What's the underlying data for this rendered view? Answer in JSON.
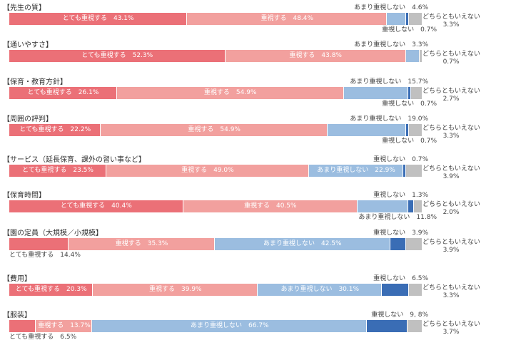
{
  "chart_data": {
    "type": "bar",
    "orientation": "horizontal-stacked-100",
    "series_names": [
      "とても重視する",
      "重視する",
      "あまり重視しない",
      "重視しない",
      "どちらともいえない"
    ],
    "colors": [
      "#eb7077",
      "#f2a09e",
      "#9bbde0",
      "#3a6db5",
      "#c0c0c0"
    ],
    "rows": [
      {
        "title": "【先生の質】",
        "values": [
          43.1,
          48.4,
          4.6,
          0.7,
          3.3
        ],
        "labels": [
          "とても重視する　43.1%",
          "重視する　48.4%",
          "あまり重視しない　4.6%",
          "重視しない　0.7%",
          "3.3%"
        ],
        "place": [
          "in",
          "in",
          "above",
          "below",
          "right"
        ]
      },
      {
        "title": "【通いやすさ】",
        "values": [
          52.3,
          43.8,
          3.3,
          0,
          0.7
        ],
        "labels": [
          "とても重視する　52.3%",
          "重視する　43.8%",
          "あまり重視しない　3.3%",
          "",
          "0.7%"
        ],
        "place": [
          "in",
          "in",
          "above",
          "none",
          "right"
        ]
      },
      {
        "title": "【保育・教育方針】",
        "values": [
          26.1,
          54.9,
          15.7,
          0.7,
          2.7
        ],
        "labels": [
          "とても重視する　26.1%",
          "重視する　54.9%",
          "あまり重視しない　15.7%",
          "重視しない　0.7%",
          "2.7%"
        ],
        "place": [
          "in",
          "in",
          "above",
          "below",
          "right"
        ]
      },
      {
        "title": "【周囲の評判】",
        "values": [
          22.2,
          54.9,
          19.0,
          0.7,
          3.3
        ],
        "labels": [
          "とても重視する　22.2%",
          "重視する　54.9%",
          "あまり重視しない　19.0%",
          "重視しない　0.7%",
          "3.3%"
        ],
        "place": [
          "in",
          "in",
          "above",
          "below",
          "right"
        ]
      },
      {
        "title": "【サービス（延長保育、課外の習い事など】",
        "values": [
          23.5,
          49.0,
          22.9,
          0.7,
          3.9
        ],
        "labels": [
          "とても重視する　23.5%",
          "重視する　49.0%",
          "あまり重視しない　22.9%",
          "重視しない　0.7%",
          "3.9%"
        ],
        "place": [
          "in",
          "in",
          "in",
          "above",
          "right"
        ]
      },
      {
        "title": "【保育時間】",
        "values": [
          40.4,
          40.5,
          11.8,
          1.3,
          2.0
        ],
        "labels": [
          "とても重視する　40.4%",
          "重視する　40.5%",
          "あまり重視しない　11.8%",
          "重視しない　1.3%",
          "2.0%"
        ],
        "place": [
          "in",
          "in",
          "below",
          "above",
          "right"
        ]
      },
      {
        "title": "【園の定員（大規模／小規模】",
        "values": [
          14.4,
          35.3,
          42.5,
          3.9,
          3.9
        ],
        "labels": [
          "とても重視する　14.4%",
          "重視する　35.3%",
          "あまり重視しない　42.5%",
          "重視しない　3.9%",
          "3.9%"
        ],
        "place": [
          "belowleft",
          "in",
          "in",
          "above",
          "right"
        ]
      },
      {
        "title": "【費用】",
        "values": [
          20.3,
          39.9,
          30.1,
          6.5,
          3.3
        ],
        "labels": [
          "とても重視する　20.3%",
          "重視する　39.9%",
          "あまり重視しない　30.1%",
          "重視しない　6.5%",
          "3.3%"
        ],
        "place": [
          "in",
          "in",
          "in",
          "above",
          "right"
        ]
      },
      {
        "title": "【服装】",
        "values": [
          6.5,
          13.7,
          66.7,
          9.8,
          3.7
        ],
        "labels": [
          "とても重視する　6.5%",
          "重視する　13.7%",
          "あまり重視しない　66.7%",
          "重視しない　9, 8%",
          "3.7%"
        ],
        "place": [
          "belowleft",
          "in",
          "in",
          "above",
          "right"
        ]
      }
    ],
    "xlim": [
      0,
      100
    ]
  }
}
